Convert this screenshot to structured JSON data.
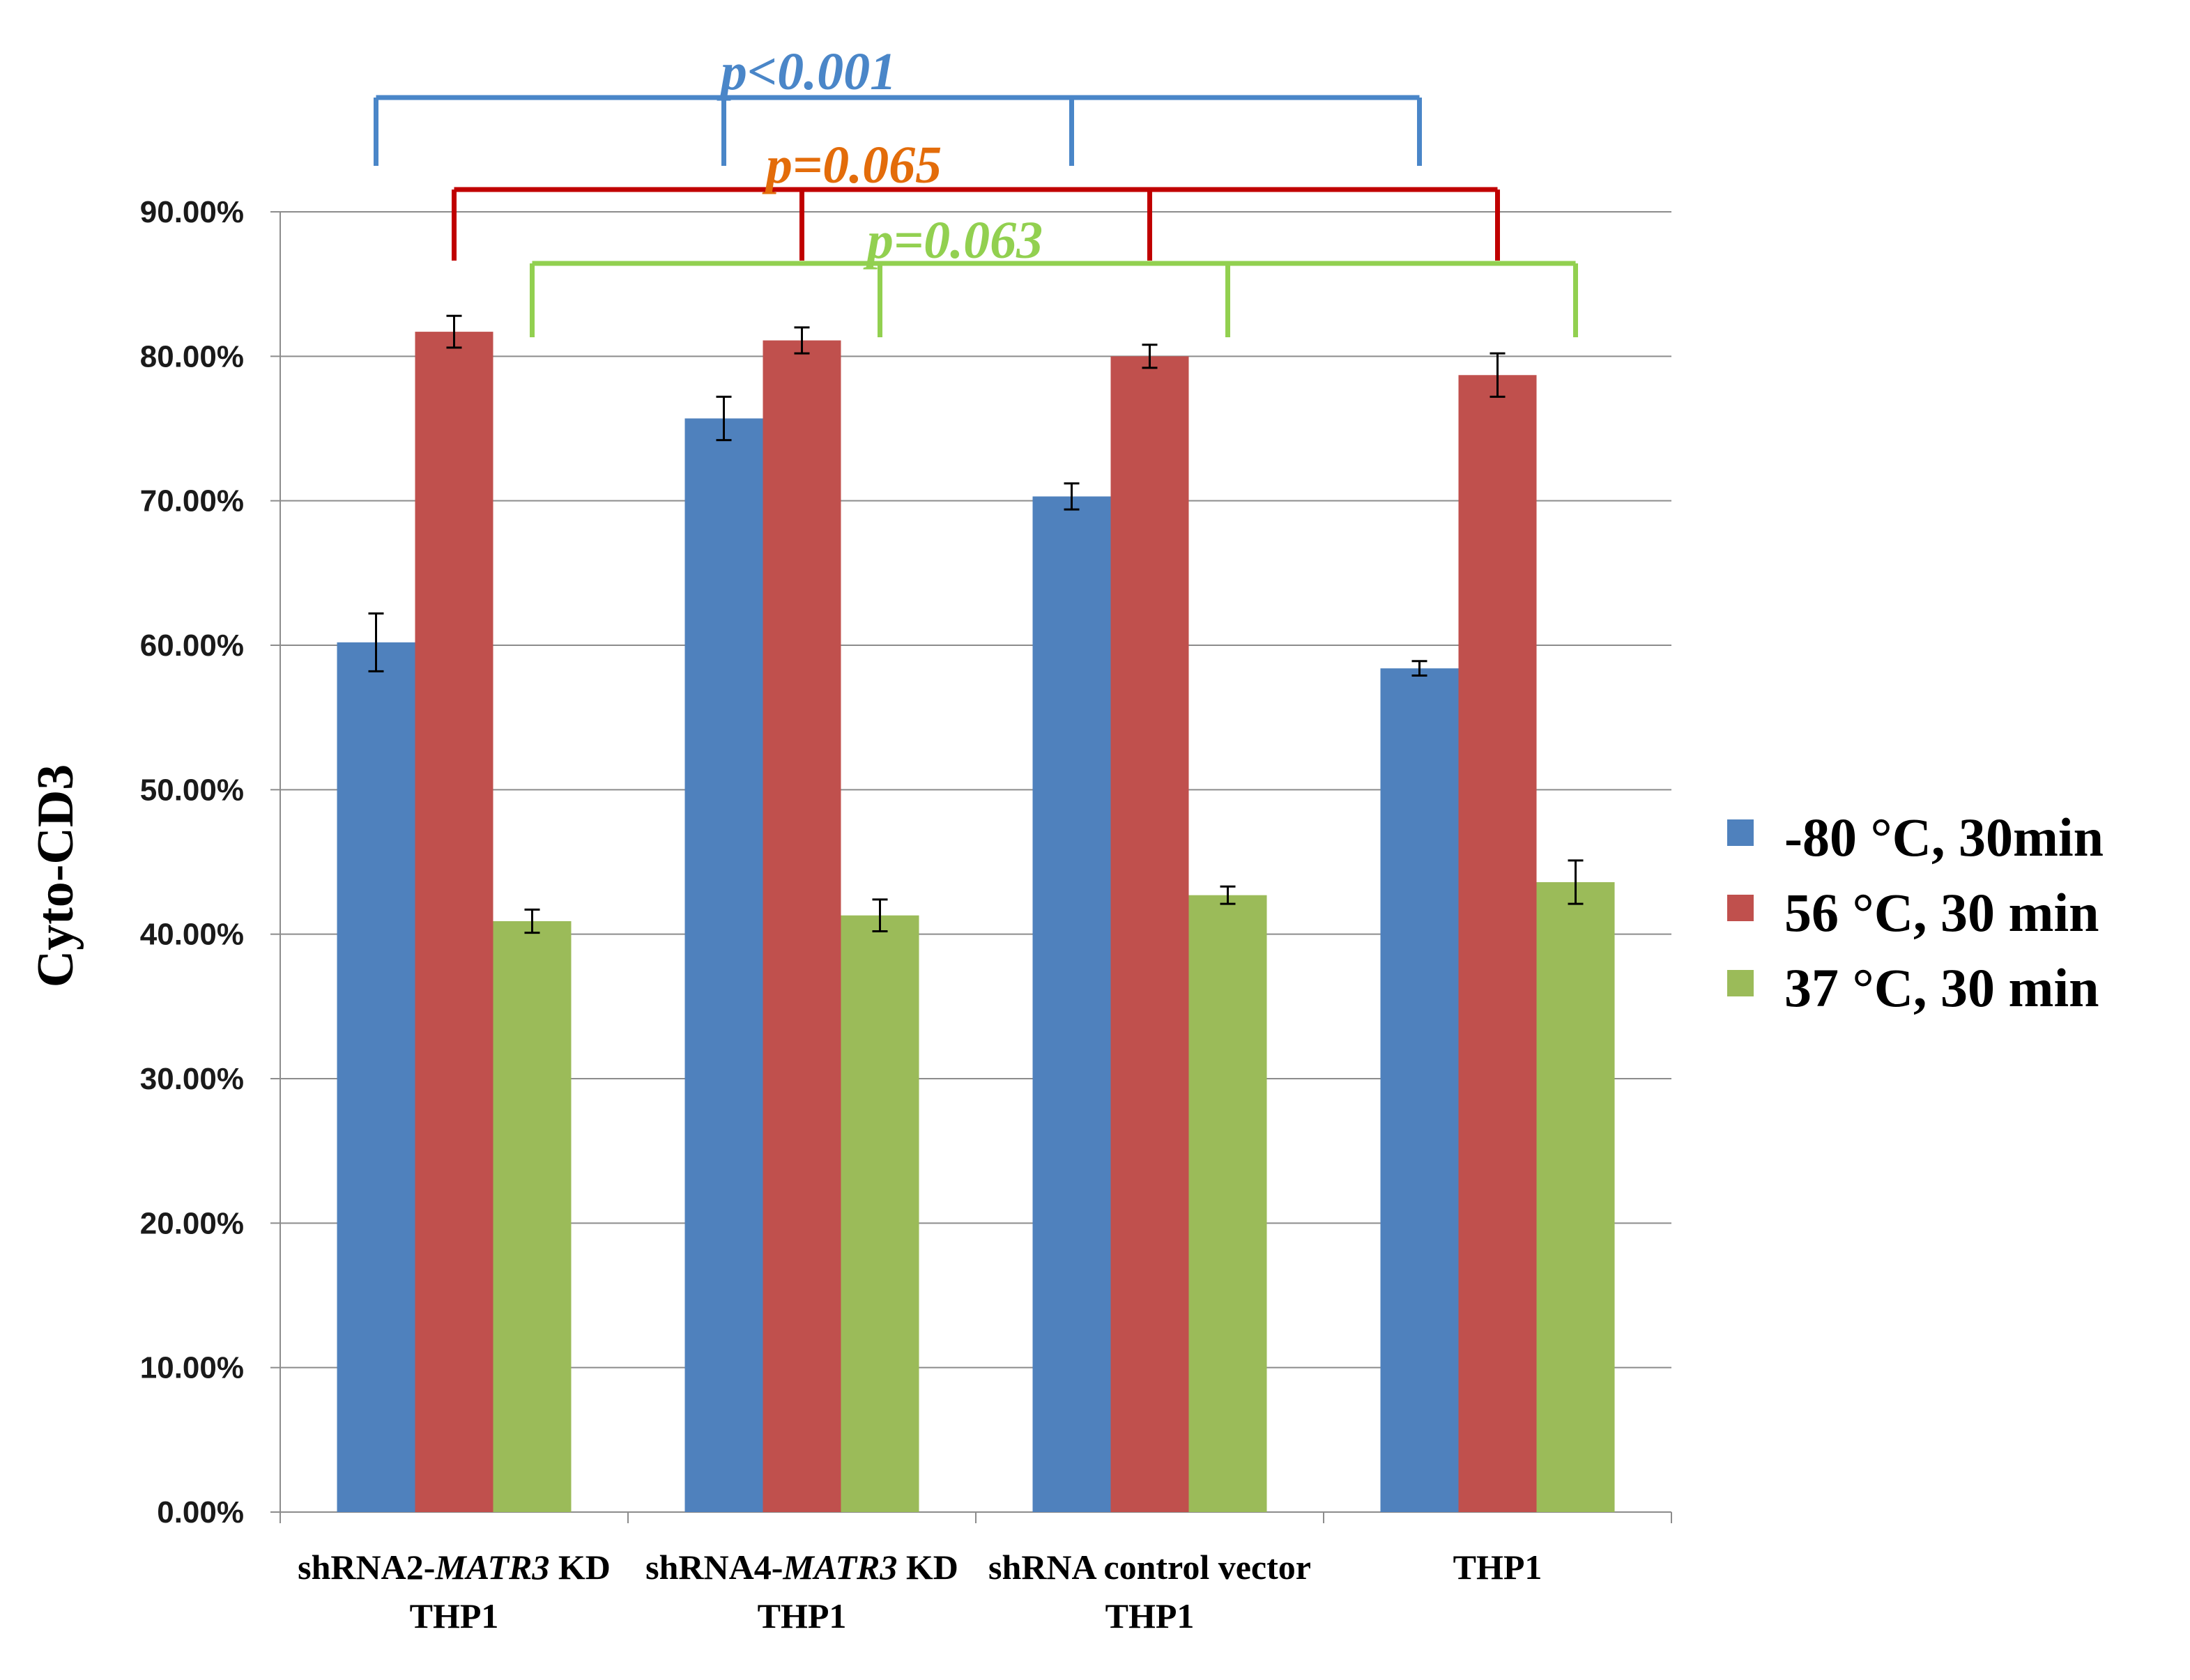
{
  "chart_data": {
    "type": "bar",
    "ylabel": "Cyto-CD3",
    "ylim": [
      0,
      0.9
    ],
    "ytick_step": 0.1,
    "ytick_labels": [
      "0.00%",
      "10.00%",
      "20.00%",
      "30.00%",
      "40.00%",
      "50.00%",
      "60.00%",
      "70.00%",
      "80.00%",
      "90.00%"
    ],
    "grid": true,
    "legend_position": "right",
    "categories": [
      {
        "line1_prefix": "shRNA2-",
        "line1_italic": "MATR3",
        "line1_suffix": " KD",
        "line2": "THP1"
      },
      {
        "line1_prefix": "shRNA4-",
        "line1_italic": "MATR3",
        "line1_suffix": " KD",
        "line2": "THP1"
      },
      {
        "line1_prefix": "shRNA control vector",
        "line1_italic": "",
        "line1_suffix": "",
        "line2": "THP1"
      },
      {
        "line1_prefix": "THP1",
        "line1_italic": "",
        "line1_suffix": "",
        "line2": ""
      }
    ],
    "series": [
      {
        "name": "-80 °C, 30min",
        "color": "#4f81bd",
        "values": [
          0.602,
          0.757,
          0.703,
          0.584
        ],
        "errors": [
          0.02,
          0.015,
          0.009,
          0.005
        ]
      },
      {
        "name": "56 °C, 30 min",
        "color": "#c0504d",
        "values": [
          0.817,
          0.811,
          0.8,
          0.787
        ],
        "errors": [
          0.011,
          0.009,
          0.008,
          0.015
        ]
      },
      {
        "name": "37 °C, 30 min",
        "color": "#9bbb59",
        "values": [
          0.409,
          0.413,
          0.427,
          0.436
        ],
        "errors": [
          0.008,
          0.011,
          0.006,
          0.015
        ]
      }
    ],
    "annotations": [
      {
        "text": "p<0.001",
        "color": "#4a86c8",
        "series_index": 0
      },
      {
        "text": "p=0.065",
        "color": "#e36c0a",
        "series_index": 1
      },
      {
        "text": "p=0.063",
        "color": "#92d050",
        "series_index": 2
      }
    ],
    "bracket_colors": [
      "#4a86c8",
      "#c00000",
      "#92d050"
    ]
  }
}
